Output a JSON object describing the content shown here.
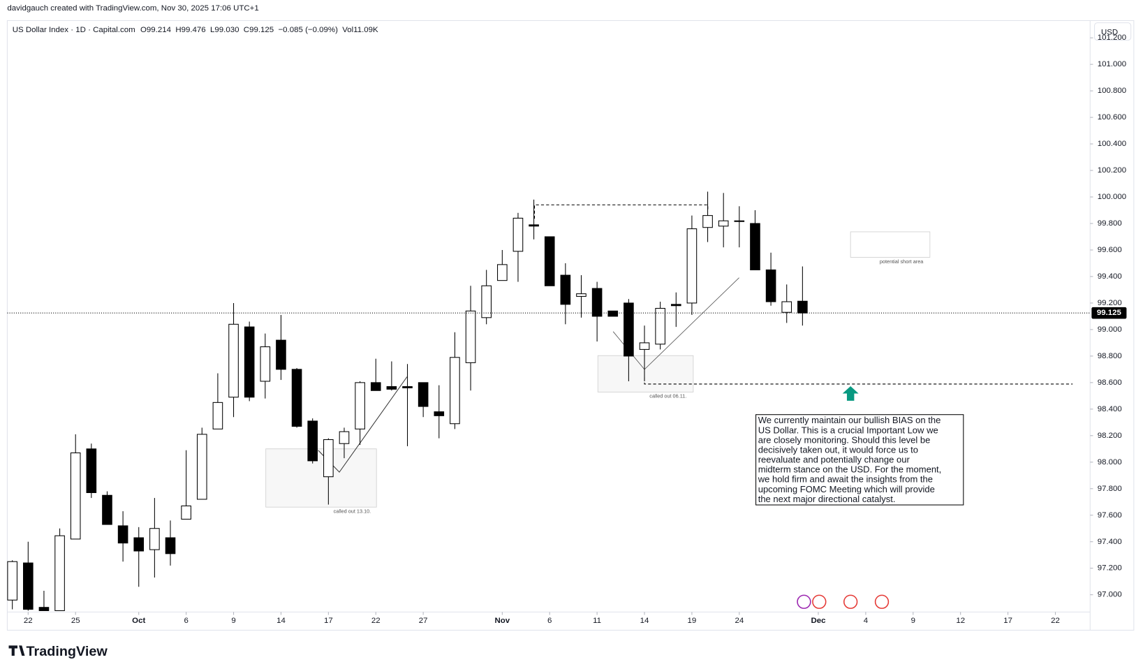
{
  "header": {
    "attribution": "davidgauch created with TradingView.com, Nov 30, 2025 17:06 UTC+1",
    "symbol": "US Dollar Index · 1D · Capital.com",
    "open": "O99.214",
    "high": "H99.476",
    "low": "L99.030",
    "close": "C99.125",
    "change": "−0.085 (−0.09%)",
    "volume": "Vol11.09K",
    "currency": "USD",
    "price_label": "99.125",
    "logo": "TradingView"
  },
  "annotations": {
    "box_1": "called out 13.10.",
    "box_2": "called out 06.11.",
    "box_3": "potential short area",
    "comment": [
      "We currently maintain our bullish BIAS on the",
      "US Dollar. This is a crucial Important Low we",
      "are closely monitoring. Should this level be",
      "decisively taken out, it would force us to",
      "reevaluate and potentially change our",
      "midterm stance on the USD. For the moment,",
      "we hold firm and await the insights from the",
      "upcoming FOMC Meeting which will provide",
      "the next major directional catalyst."
    ]
  },
  "chart_data": {
    "type": "candlestick",
    "open": [
      96.96,
      97.24,
      96.905,
      96.88,
      97.42,
      98.1,
      97.75,
      97.52,
      97.43,
      97.34,
      97.43,
      97.57,
      97.72,
      98.25,
      98.49,
      99.02,
      98.61,
      98.92,
      98.7,
      98.31,
      97.89,
      98.14,
      98.25,
      98.6,
      98.57,
      98.57,
      98.6,
      98.38,
      98.29,
      98.75,
      99.09,
      99.37,
      99.59,
      99.79,
      99.7,
      99.41,
      99.25,
      99.31,
      99.14,
      99.2,
      98.85,
      98.89,
      99.19,
      99.2,
      99.77,
      99.78,
      99.82,
      99.8,
      99.45,
      99.13,
      99.214
    ],
    "high": [
      97.26,
      97.4,
      97.03,
      97.5,
      98.21,
      98.14,
      97.78,
      97.63,
      97.51,
      97.73,
      97.56,
      98.09,
      98.26,
      98.67,
      99.2,
      99.06,
      98.97,
      99.11,
      98.71,
      98.33,
      98.18,
      98.26,
      98.61,
      98.78,
      98.76,
      98.74,
      98.6,
      98.58,
      98.98,
      99.33,
      99.45,
      99.6,
      99.88,
      99.98,
      99.7,
      99.5,
      99.41,
      99.36,
      99.14,
      99.23,
      99.03,
      99.21,
      99.28,
      99.86,
      100.04,
      100.03,
      99.93,
      99.9,
      99.58,
      99.34,
      99.476
    ],
    "low": [
      96.89,
      96.88,
      96.88,
      96.88,
      97.42,
      97.73,
      97.53,
      97.25,
      97.06,
      97.13,
      97.22,
      97.57,
      97.72,
      98.25,
      98.34,
      98.46,
      98.48,
      98.62,
      98.26,
      97.99,
      97.68,
      98.03,
      98.13,
      98.54,
      98.54,
      98.12,
      98.34,
      98.18,
      98.25,
      98.54,
      99.04,
      99.37,
      99.36,
      99.68,
      99.33,
      99.04,
      99.09,
      98.91,
      99.1,
      98.61,
      98.61,
      98.85,
      99.02,
      99.11,
      99.66,
      99.62,
      99.62,
      99.45,
      99.18,
      99.05,
      99.03
    ],
    "close": [
      97.25,
      96.89,
      96.88,
      97.445,
      98.07,
      97.77,
      97.53,
      97.39,
      97.33,
      97.5,
      97.31,
      97.67,
      98.21,
      98.45,
      99.04,
      98.49,
      98.87,
      98.7,
      98.27,
      98.01,
      98.17,
      98.23,
      98.6,
      98.54,
      98.55,
      98.56,
      98.42,
      98.35,
      98.79,
      99.14,
      99.33,
      99.49,
      99.84,
      99.78,
      99.33,
      99.19,
      99.27,
      99.1,
      99.1,
      98.8,
      98.9,
      99.16,
      99.18,
      99.76,
      99.86,
      99.82,
      99.82,
      99.45,
      99.21,
      99.21,
      99.125
    ],
    "up_color": "#ffffff",
    "down_color": "#000000",
    "border_color": "#000000",
    "xlim": [
      -0.32,
      68.2
    ],
    "xticks": [
      {
        "value": 1,
        "label": "22"
      },
      {
        "value": 4,
        "label": "25"
      },
      {
        "value": 8,
        "label": "Oct"
      },
      {
        "value": 11,
        "label": "6"
      },
      {
        "value": 14,
        "label": "9"
      },
      {
        "value": 17,
        "label": "14"
      },
      {
        "value": 20,
        "label": "17"
      },
      {
        "value": 23,
        "label": "22"
      },
      {
        "value": 26,
        "label": "27"
      },
      {
        "value": 31,
        "label": "Nov"
      },
      {
        "value": 34,
        "label": "6"
      },
      {
        "value": 37,
        "label": "11"
      },
      {
        "value": 40,
        "label": "14"
      },
      {
        "value": 43,
        "label": "19"
      },
      {
        "value": 46,
        "label": "24"
      },
      {
        "value": 51,
        "label": "Dec"
      },
      {
        "value": 54,
        "label": "4"
      },
      {
        "value": 57,
        "label": "9"
      },
      {
        "value": 60,
        "label": "12"
      },
      {
        "value": 63,
        "label": "17"
      },
      {
        "value": 66,
        "label": "22"
      }
    ],
    "ylim": [
      96.87,
      101.33
    ],
    "yticks": [
      {
        "value": 97,
        "label": "97.000"
      },
      {
        "value": 97.2,
        "label": "97.200"
      },
      {
        "value": 97.4,
        "label": "97.400"
      },
      {
        "value": 97.6,
        "label": "97.600"
      },
      {
        "value": 97.8,
        "label": "97.800"
      },
      {
        "value": 98,
        "label": "98.000"
      },
      {
        "value": 98.2,
        "label": "98.200"
      },
      {
        "value": 98.4,
        "label": "98.400"
      },
      {
        "value": 98.6,
        "label": "98.600"
      },
      {
        "value": 98.8,
        "label": "98.800"
      },
      {
        "value": 99,
        "label": "99.000"
      },
      {
        "value": 99.2,
        "label": "99.200"
      },
      {
        "value": 99.4,
        "label": "99.400"
      },
      {
        "value": 99.6,
        "label": "99.600"
      },
      {
        "value": 99.8,
        "label": "99.800"
      },
      {
        "value": 100,
        "label": "100.000"
      },
      {
        "value": 100.2,
        "label": "100.200"
      },
      {
        "value": 100.4,
        "label": "100.400"
      },
      {
        "value": 100.6,
        "label": "100.600"
      },
      {
        "value": 100.8,
        "label": "100.800"
      },
      {
        "value": 101,
        "label": "101.000"
      },
      {
        "value": 101.2,
        "label": "101.200"
      }
    ],
    "grid": false
  }
}
